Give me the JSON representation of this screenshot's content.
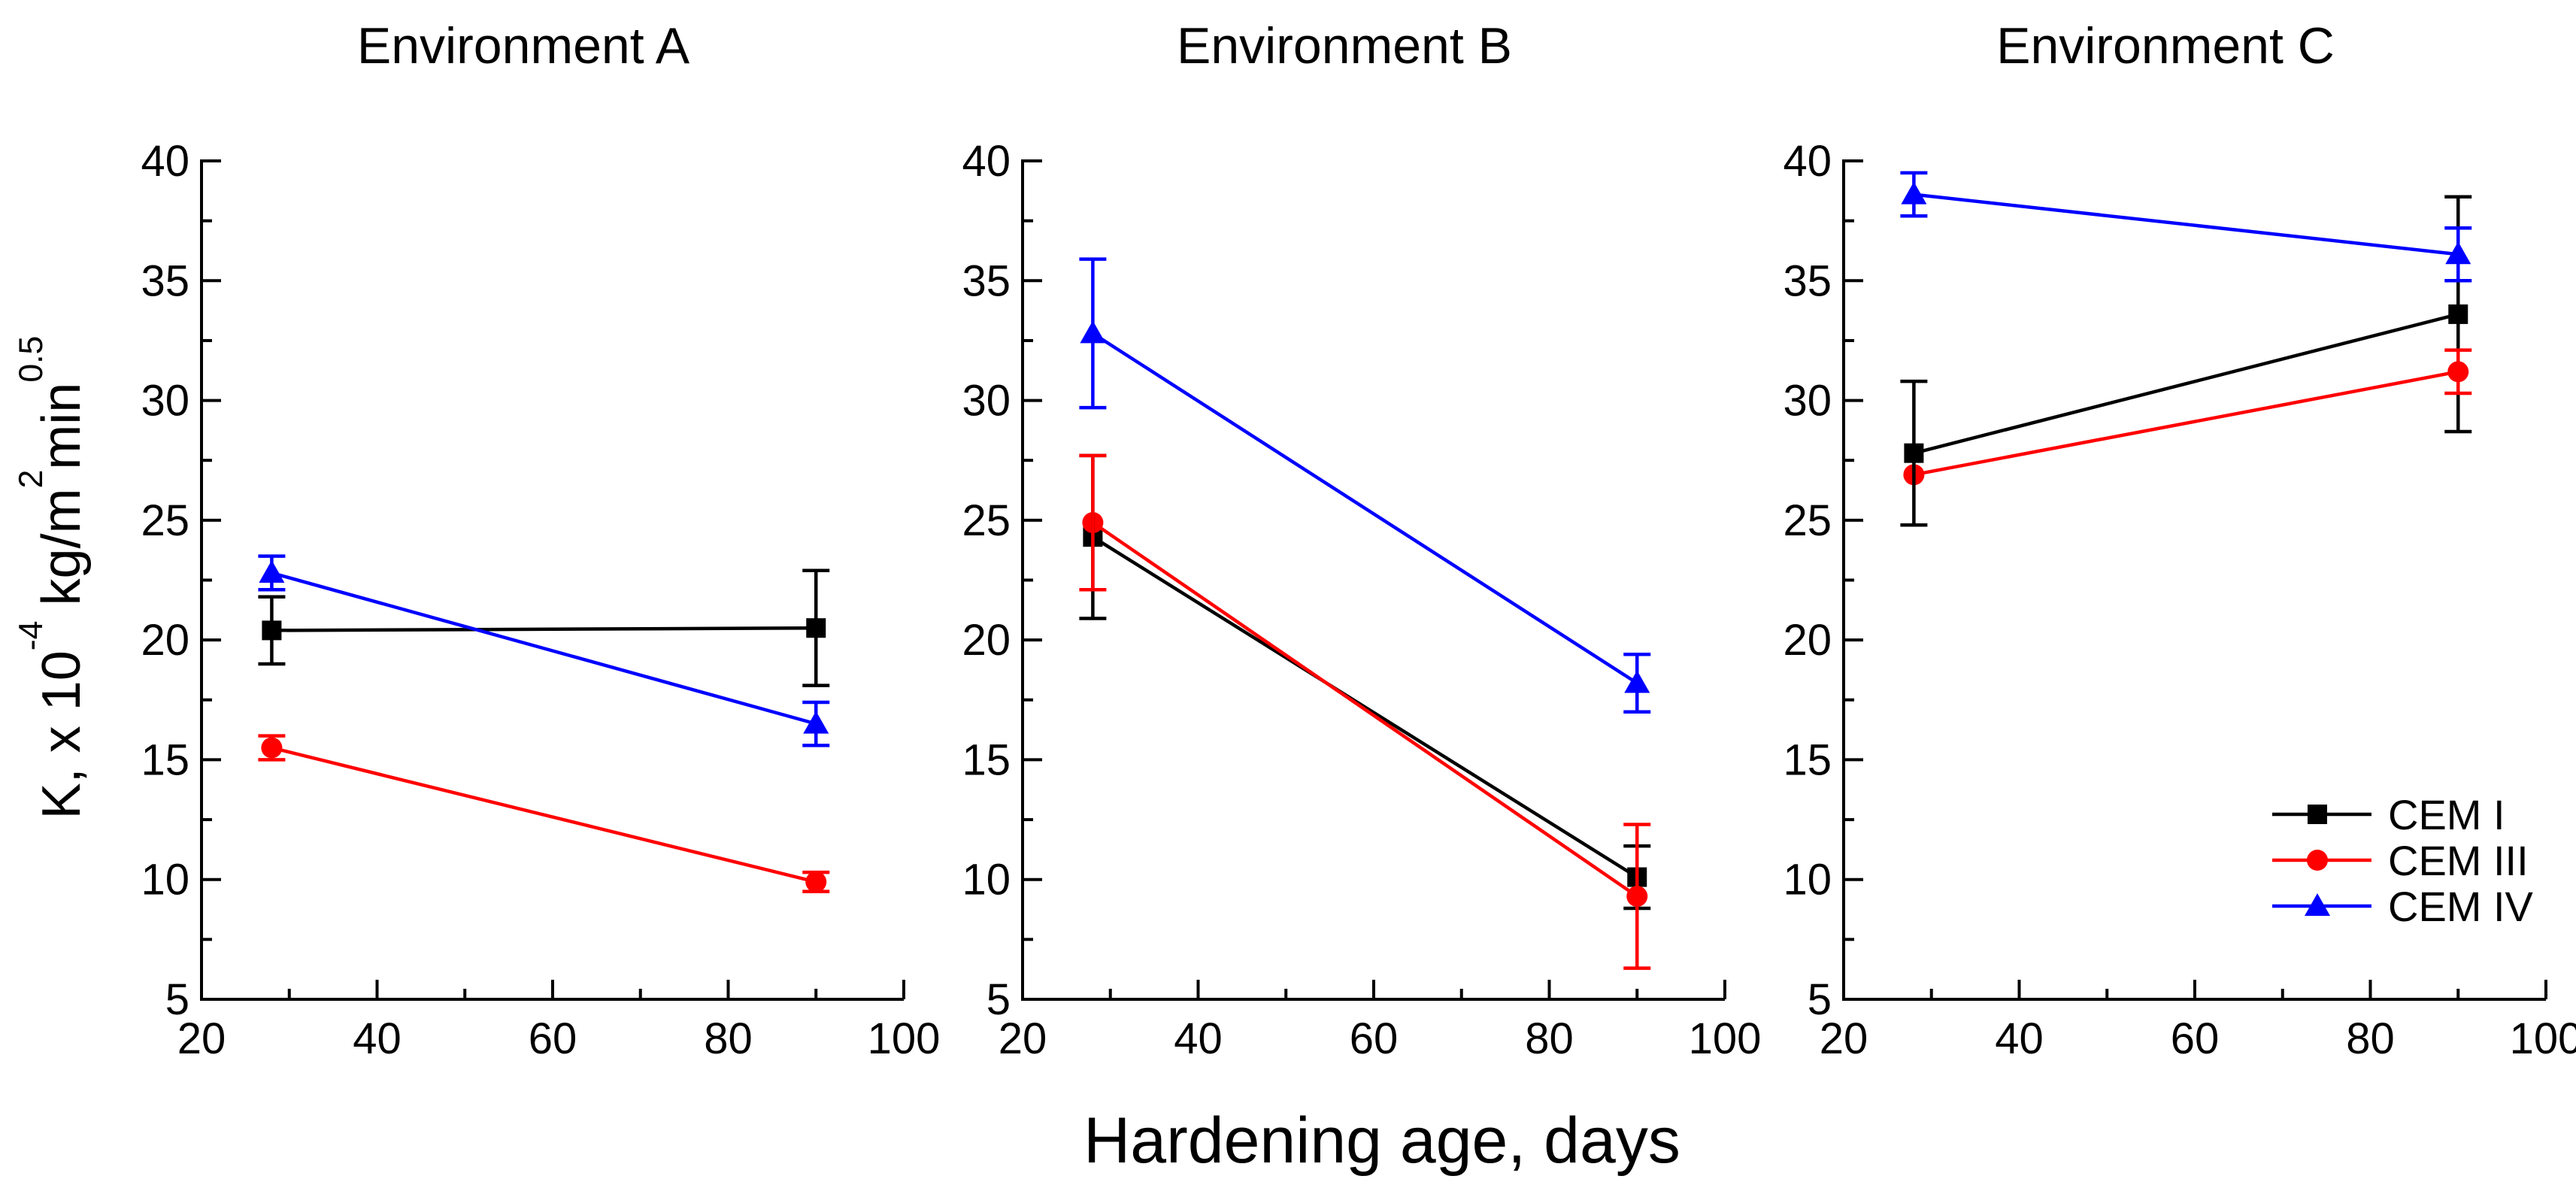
{
  "figure": {
    "background": "#ffffff",
    "axis_color": "#000000",
    "x_axis_label": "Hardening age, days",
    "y_axis_label_plain": "K, x 10^-4 kg/m^2min^0.5",
    "y_label_runs": {
      "r1": "K, x 10",
      "r2": "-4",
      "r3": " kg/m",
      "r4": "2",
      "r5": "min",
      "r6": "0.5"
    }
  },
  "chart_data": [
    {
      "type": "line",
      "title": "Environment A",
      "x": [
        28,
        90
      ],
      "xlim": [
        20,
        100
      ],
      "ylim": [
        5,
        40
      ],
      "x_tick_step": 20,
      "x_minor_step": 10,
      "y_tick_step": 5,
      "y_minor_step": 2.5,
      "grid": false,
      "series": [
        {
          "name": "CEM I",
          "color": "#000000",
          "marker": "square",
          "values": [
            20.4,
            20.5
          ],
          "errors": [
            1.4,
            2.4
          ]
        },
        {
          "name": "CEM III",
          "color": "#ff0000",
          "marker": "circle",
          "values": [
            15.5,
            9.9
          ],
          "errors": [
            0.5,
            0.4
          ]
        },
        {
          "name": "CEM IV",
          "color": "#0000ff",
          "marker": "triangle",
          "values": [
            22.8,
            16.5
          ],
          "errors": [
            0.7,
            0.9
          ]
        }
      ]
    },
    {
      "type": "line",
      "title": "Environment B",
      "x": [
        28,
        90
      ],
      "xlim": [
        20,
        100
      ],
      "ylim": [
        5,
        40
      ],
      "x_tick_step": 20,
      "x_minor_step": 10,
      "y_tick_step": 5,
      "y_minor_step": 2.5,
      "grid": false,
      "series": [
        {
          "name": "CEM I",
          "color": "#000000",
          "marker": "square",
          "values": [
            24.3,
            10.1
          ],
          "errors": [
            3.4,
            1.3
          ]
        },
        {
          "name": "CEM III",
          "color": "#ff0000",
          "marker": "circle",
          "values": [
            24.9,
            9.3
          ],
          "errors": [
            2.8,
            3.0
          ]
        },
        {
          "name": "CEM IV",
          "color": "#0000ff",
          "marker": "triangle",
          "values": [
            32.8,
            18.2
          ],
          "errors": [
            3.1,
            1.2
          ]
        }
      ]
    },
    {
      "type": "line",
      "title": "Environment C",
      "x": [
        28,
        90
      ],
      "xlim": [
        20,
        100
      ],
      "ylim": [
        5,
        40
      ],
      "x_tick_step": 20,
      "x_minor_step": 10,
      "y_tick_step": 5,
      "y_minor_step": 2.5,
      "grid": false,
      "legend": {
        "visible": true,
        "position": "lower-right"
      },
      "series": [
        {
          "name": "CEM I",
          "color": "#000000",
          "marker": "square",
          "values": [
            27.8,
            33.6
          ],
          "errors": [
            3.0,
            4.9
          ]
        },
        {
          "name": "CEM III",
          "color": "#ff0000",
          "marker": "circle",
          "values": [
            26.9,
            31.2
          ],
          "errors": [
            0,
            0.9
          ]
        },
        {
          "name": "CEM IV",
          "color": "#0000ff",
          "marker": "triangle",
          "values": [
            38.6,
            36.1
          ],
          "errors": [
            0.9,
            1.1
          ]
        }
      ]
    }
  ]
}
